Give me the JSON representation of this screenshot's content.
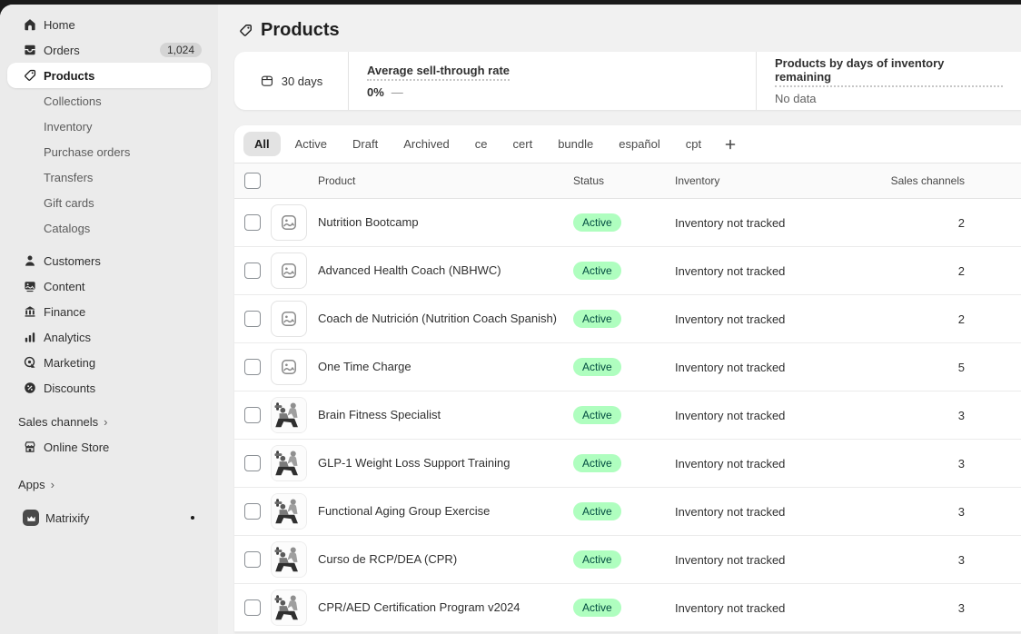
{
  "page": {
    "title": "Products"
  },
  "sidebar": {
    "items": [
      {
        "label": "Home"
      },
      {
        "label": "Orders",
        "badge": "1,024"
      },
      {
        "label": "Products"
      },
      {
        "label": "Collections"
      },
      {
        "label": "Inventory"
      },
      {
        "label": "Purchase orders"
      },
      {
        "label": "Transfers"
      },
      {
        "label": "Gift cards"
      },
      {
        "label": "Catalogs"
      },
      {
        "label": "Customers"
      },
      {
        "label": "Content"
      },
      {
        "label": "Finance"
      },
      {
        "label": "Analytics"
      },
      {
        "label": "Marketing"
      },
      {
        "label": "Discounts"
      }
    ],
    "sales_channels_header": "Sales channels",
    "online_store_label": "Online Store",
    "apps_header": "Apps",
    "matrixify_label": "Matrixify"
  },
  "metrics": {
    "range_label": "30 days",
    "sell_through": {
      "title": "Average sell-through rate",
      "value": "0%",
      "suffix": "—"
    },
    "days_remaining": {
      "title": "Products by days of inventory remaining",
      "value": "No data"
    }
  },
  "tabs": {
    "selected": "All",
    "items": [
      "All",
      "Active",
      "Draft",
      "Archived",
      "ce",
      "cert",
      "bundle",
      "español",
      "cpt"
    ]
  },
  "table": {
    "columns": {
      "product": "Product",
      "status": "Status",
      "inventory": "Inventory",
      "sales_channels": "Sales channels"
    },
    "rows": [
      {
        "product": "Nutrition Bootcamp",
        "status": "Active",
        "inventory": "Inventory not tracked",
        "sales_channels": "2",
        "thumb": "placeholder"
      },
      {
        "product": "Advanced Health Coach (NBHWC)",
        "status": "Active",
        "inventory": "Inventory not tracked",
        "sales_channels": "2",
        "thumb": "placeholder"
      },
      {
        "product": "Coach de Nutrición (Nutrition Coach Spanish)",
        "status": "Active",
        "inventory": "Inventory not tracked",
        "sales_channels": "2",
        "thumb": "placeholder"
      },
      {
        "product": "One Time Charge",
        "status": "Active",
        "inventory": "Inventory not tracked",
        "sales_channels": "5",
        "thumb": "placeholder"
      },
      {
        "product": "Brain Fitness Specialist",
        "status": "Active",
        "inventory": "Inventory not tracked",
        "sales_channels": "3",
        "thumb": "fitness-photo"
      },
      {
        "product": "GLP-1 Weight Loss Support Training",
        "status": "Active",
        "inventory": "Inventory not tracked",
        "sales_channels": "3",
        "thumb": "fitness-photo"
      },
      {
        "product": "Functional Aging Group Exercise",
        "status": "Active",
        "inventory": "Inventory not tracked",
        "sales_channels": "3",
        "thumb": "fitness-photo"
      },
      {
        "product": "Curso de RCP/DEA (CPR)",
        "status": "Active",
        "inventory": "Inventory not tracked",
        "sales_channels": "3",
        "thumb": "fitness-photo"
      },
      {
        "product": "CPR/AED Certification Program v2024",
        "status": "Active",
        "inventory": "Inventory not tracked",
        "sales_channels": "3",
        "thumb": "fitness-photo"
      }
    ]
  },
  "colors": {
    "topbar_bg": "#1a1a1a",
    "sidebar_bg": "#ebebeb",
    "surface_bg": "#f1f1f1",
    "badge_success_bg": "#affebf",
    "badge_success_text": "#014b40"
  }
}
